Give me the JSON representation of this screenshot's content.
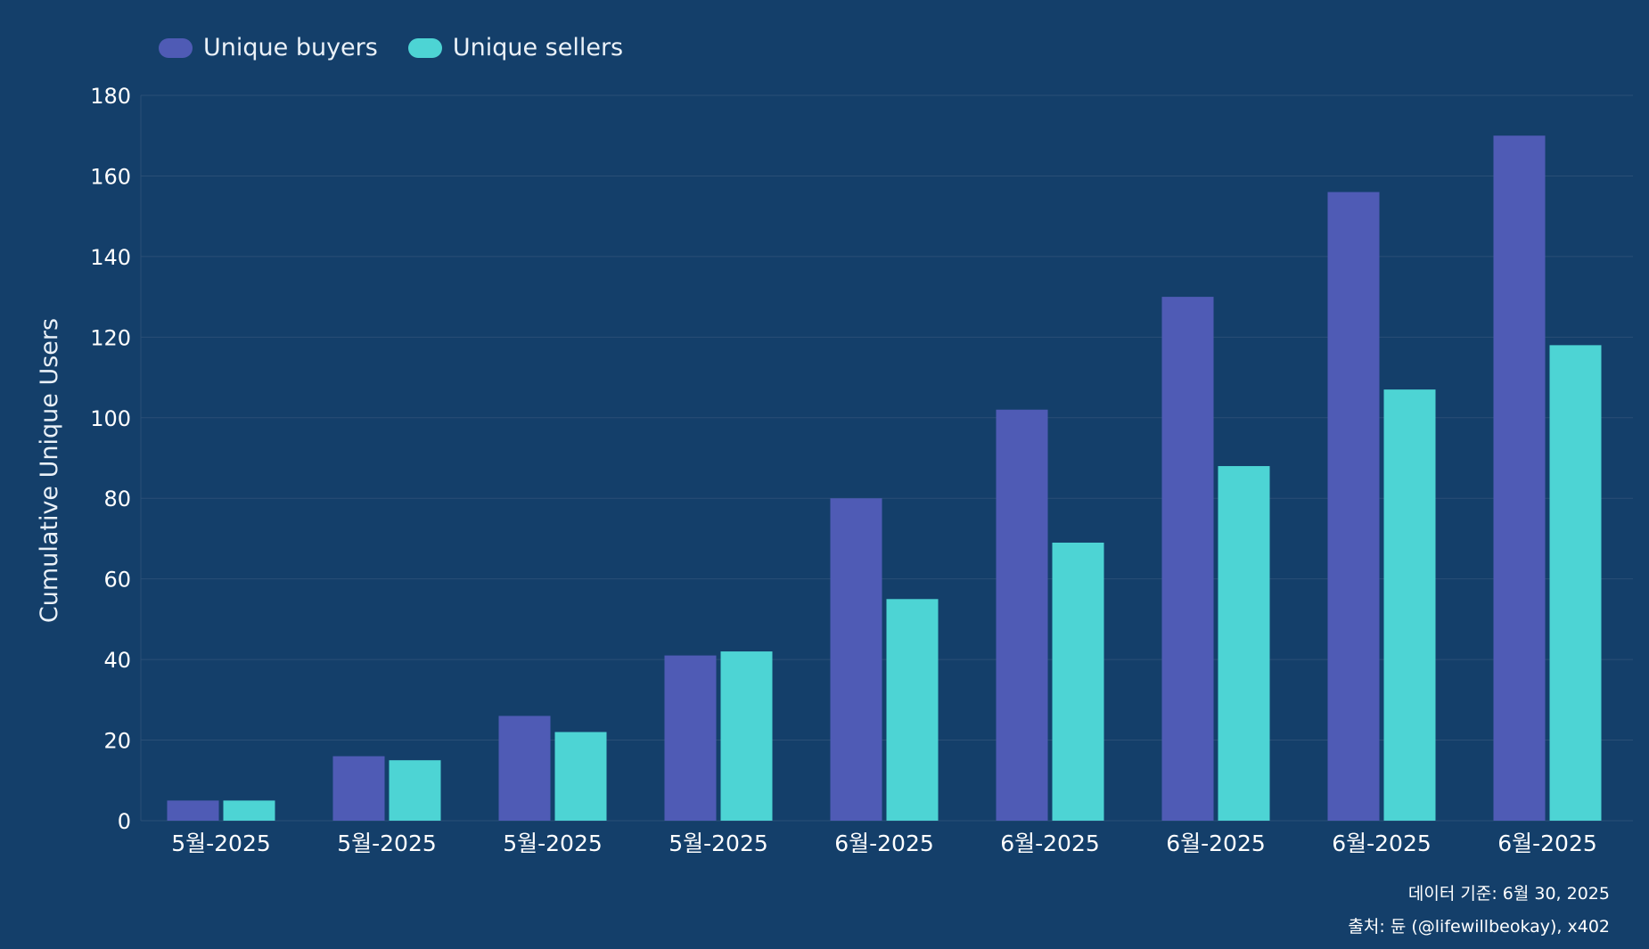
{
  "legend": {
    "buyers_label": "Unique buyers",
    "sellers_label": "Unique sellers"
  },
  "footnotes": {
    "data_as_of": "데이터 기준: 6월 30, 2025",
    "source": "출처: 듄 (@lifewillbeokay), x402"
  },
  "colors": {
    "background": "#143f6a",
    "buyers": "#4f5bb5",
    "sellers": "#4dd4d4",
    "grid": "#2a4f76",
    "text": "#ffffff"
  },
  "chart_data": {
    "type": "bar",
    "title": "",
    "xlabel": "",
    "ylabel": "Cumulative Unique Users",
    "ylim": [
      0,
      180
    ],
    "yticks": [
      0,
      20,
      40,
      60,
      80,
      100,
      120,
      140,
      160,
      180
    ],
    "grid": true,
    "legend_position": "top-left",
    "categories": [
      "5월-2025",
      "5월-2025",
      "5월-2025",
      "5월-2025",
      "6월-2025",
      "6월-2025",
      "6월-2025",
      "6월-2025",
      "6월-2025"
    ],
    "series": [
      {
        "name": "Unique buyers",
        "values": [
          5,
          16,
          26,
          41,
          80,
          102,
          130,
          156,
          170
        ]
      },
      {
        "name": "Unique sellers",
        "values": [
          5,
          15,
          22,
          42,
          55,
          69,
          88,
          107,
          118
        ]
      }
    ]
  }
}
